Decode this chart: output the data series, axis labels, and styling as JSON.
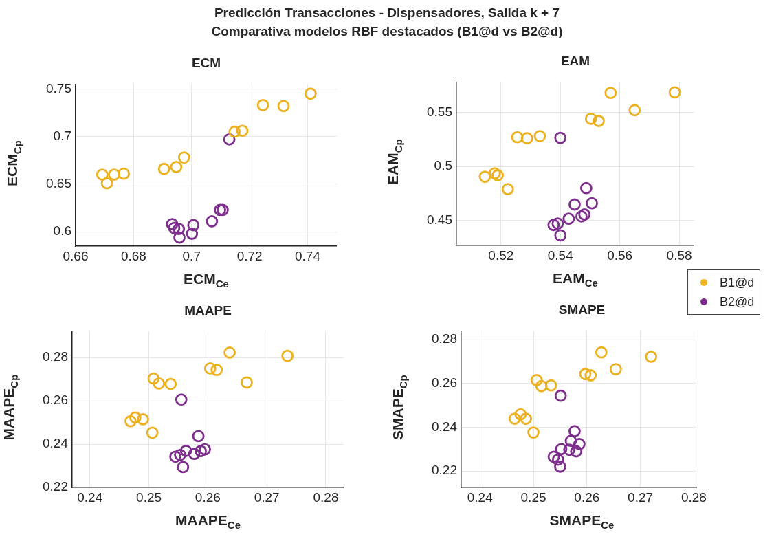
{
  "chart_data": [
    {
      "type": "scatter",
      "title": "ECM",
      "annotations": [
        "Predicción Transacciones - Dispensadores, Salida k + 7",
        "Comparativa modelos RBF destacados (B1@d vs B2@d)"
      ],
      "xlabel": "ECM$_{Ce}$",
      "ylabel": "ECM$_{Cp}$",
      "xlim": [
        0.66,
        0.75
      ],
      "ylim": [
        0.585,
        0.755
      ],
      "xticks": [
        0.66,
        0.68,
        0.7,
        0.72,
        0.74
      ],
      "yticks": [
        0.6,
        0.65,
        0.7,
        0.75
      ],
      "grid": true,
      "marker": "circle",
      "legend": "right",
      "series": [
        {
          "name": "B1@d",
          "color": "#edb120",
          "x": [
            0.7246,
            0.7317,
            0.741,
            0.7148,
            0.7175,
            0.6974,
            0.6947,
            0.6905,
            0.6692,
            0.6708,
            0.6733,
            0.6766
          ],
          "values": [
            0.733,
            0.732,
            0.745,
            0.705,
            0.706,
            0.678,
            0.668,
            0.666,
            0.66,
            0.651,
            0.66,
            0.661
          ]
        },
        {
          "name": "B2@d",
          "color": "#7e2f8e",
          "x": [
            0.713,
            0.7098,
            0.7107,
            0.707,
            0.7006,
            0.7001,
            0.6933,
            0.694,
            0.6956,
            0.6958
          ],
          "values": [
            0.697,
            0.623,
            0.623,
            0.611,
            0.607,
            0.598,
            0.608,
            0.604,
            0.603,
            0.594
          ]
        }
      ]
    },
    {
      "type": "scatter",
      "title": "EAM",
      "xlabel": "EAM$_{Ce}$",
      "ylabel": "EAM$_{Cp}$",
      "xlim": [
        0.505,
        0.585
      ],
      "ylim": [
        0.427,
        0.578
      ],
      "xticks": [
        0.52,
        0.54,
        0.56,
        0.58
      ],
      "yticks": [
        0.45,
        0.5,
        0.55
      ],
      "grid": true,
      "marker": "circle",
      "series": [
        {
          "color": "#edb120",
          "x": [
            0.5569,
            0.5785,
            0.565,
            0.5503,
            0.5529,
            0.5331,
            0.5288,
            0.5255,
            0.5179,
            0.5189,
            0.5146,
            0.5223
          ],
          "values": [
            0.568,
            0.5685,
            0.552,
            0.544,
            0.542,
            0.528,
            0.526,
            0.527,
            0.4936,
            0.4918,
            0.4905,
            0.479
          ]
        },
        {
          "color": "#7e2f8e",
          "x": [
            0.54,
            0.5487,
            0.5506,
            0.5448,
            0.5481,
            0.5471,
            0.5428,
            0.5377,
            0.5391,
            0.54
          ],
          "values": [
            0.5264,
            0.48,
            0.466,
            0.4648,
            0.4556,
            0.4538,
            0.4517,
            0.4459,
            0.4472,
            0.4363
          ]
        }
      ]
    },
    {
      "type": "scatter",
      "title": "MAAPE",
      "xlabel": "MAAPE$_{Ce}$",
      "ylabel": "MAAPE$_{Cp}$",
      "xlim": [
        0.237,
        0.283
      ],
      "ylim": [
        0.22,
        0.292
      ],
      "xticks": [
        0.24,
        0.25,
        0.26,
        0.27,
        0.28
      ],
      "yticks": [
        0.22,
        0.24,
        0.26,
        0.28
      ],
      "grid": true,
      "marker": "circle",
      "series": [
        {
          "color": "#edb120",
          "x": [
            0.2637,
            0.2735,
            0.2604,
            0.2615,
            0.2666,
            0.2508,
            0.2517,
            0.2537,
            0.2477,
            0.2469,
            0.249,
            0.2506
          ],
          "values": [
            0.2823,
            0.2808,
            0.275,
            0.2743,
            0.2685,
            0.2703,
            0.268,
            0.2678,
            0.2523,
            0.2506,
            0.2515,
            0.2453
          ]
        },
        {
          "color": "#7e2f8e",
          "x": [
            0.2555,
            0.2584,
            0.2595,
            0.2588,
            0.2577,
            0.2563,
            0.2553,
            0.2545,
            0.2558
          ],
          "values": [
            0.2606,
            0.2437,
            0.2376,
            0.2368,
            0.2355,
            0.2369,
            0.235,
            0.2342,
            0.2294
          ]
        }
      ]
    },
    {
      "type": "scatter",
      "title": "SMAPE",
      "xlabel": "SMAPE$_{Ce}$",
      "ylabel": "SMAPE$_{Cp}$",
      "xlim": [
        0.2365,
        0.2805
      ],
      "ylim": [
        0.2125,
        0.284
      ],
      "xticks": [
        0.24,
        0.25,
        0.26,
        0.27,
        0.28
      ],
      "yticks": [
        0.22,
        0.24,
        0.26,
        0.28
      ],
      "grid": true,
      "marker": "circle",
      "series": [
        {
          "color": "#edb120",
          "x": [
            0.2627,
            0.272,
            0.2654,
            0.2597,
            0.2607,
            0.2506,
            0.2515,
            0.2533,
            0.2476,
            0.2465,
            0.2486,
            0.25
          ],
          "values": [
            0.2742,
            0.2722,
            0.2665,
            0.2643,
            0.2637,
            0.2615,
            0.2588,
            0.2591,
            0.2459,
            0.2439,
            0.2439,
            0.2376
          ]
        },
        {
          "color": "#7e2f8e",
          "x": [
            0.2551,
            0.2577,
            0.2586,
            0.257,
            0.258,
            0.2567,
            0.2552,
            0.2538,
            0.2546,
            0.255
          ],
          "values": [
            0.2544,
            0.2382,
            0.2323,
            0.2338,
            0.229,
            0.2297,
            0.23,
            0.2265,
            0.2252,
            0.222
          ]
        }
      ]
    }
  ]
}
